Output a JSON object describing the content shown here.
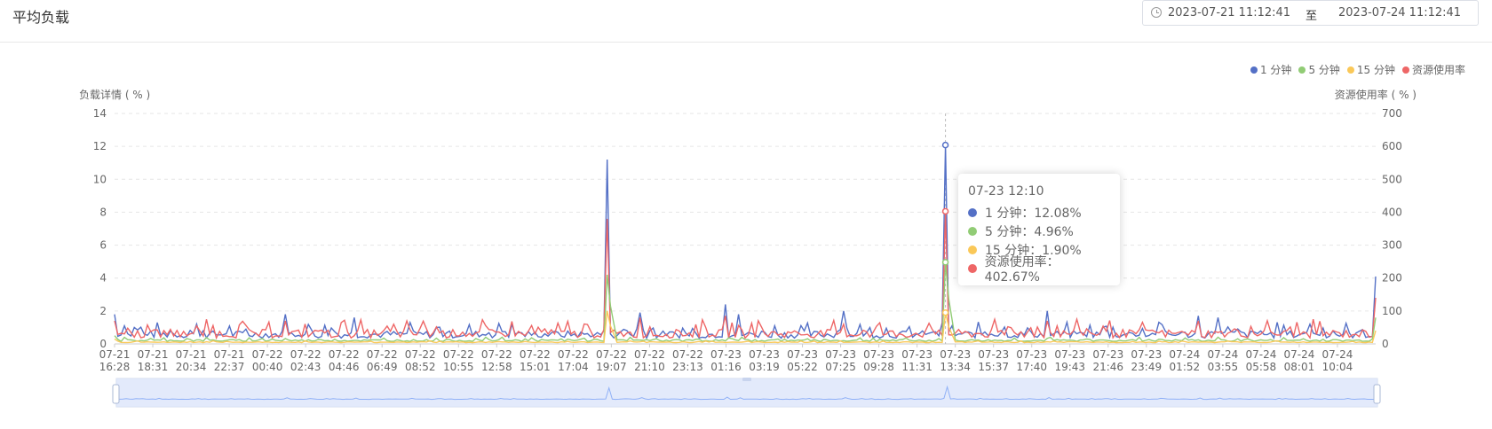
{
  "page": {
    "title": "平均负载"
  },
  "date_range": {
    "start": "2023-07-21 11:12:41",
    "separator": "至",
    "end": "2023-07-24 11:12:41"
  },
  "colors": {
    "load1": "#5470c6",
    "load5": "#91cc75",
    "load15": "#fac858",
    "usage": "#ee6666"
  },
  "legend": [
    {
      "label": "1 分钟",
      "color": "#5470c6",
      "icon": "circle-dot-icon"
    },
    {
      "label": "5 分钟",
      "color": "#91cc75",
      "icon": "circle-dot-icon"
    },
    {
      "label": "15 分钟",
      "color": "#fac858",
      "icon": "circle-dot-icon"
    },
    {
      "label": "资源使用率",
      "color": "#ee6666",
      "icon": "circle-dot-icon"
    }
  ],
  "tooltip": {
    "title": "07-23 12:10",
    "rows": [
      {
        "label": "1 分钟：12.08%",
        "color": "#5470c6"
      },
      {
        "label": "5 分钟：4.96%",
        "color": "#91cc75"
      },
      {
        "label": "15 分钟：1.90%",
        "color": "#fac858"
      },
      {
        "label": "资源使用率：402.67%",
        "color": "#ee6666"
      }
    ]
  },
  "chart_data": {
    "type": "line",
    "y_left_label": "负载详情 ( % )",
    "y_right_label": "资源使用率 ( % )",
    "y_left_ticks": [
      0,
      2,
      4,
      6,
      8,
      10,
      12,
      14
    ],
    "y_right_ticks": [
      0,
      100,
      200,
      300,
      400,
      500,
      600,
      700
    ],
    "ylim_left": [
      0,
      14
    ],
    "ylim_right": [
      0,
      700
    ],
    "grid": true,
    "legend_position": "top-right",
    "x_ticks": [
      [
        "07-21",
        "16:28"
      ],
      [
        "07-21",
        "18:31"
      ],
      [
        "07-21",
        "20:34"
      ],
      [
        "07-21",
        "22:37"
      ],
      [
        "07-22",
        "00:40"
      ],
      [
        "07-22",
        "02:43"
      ],
      [
        "07-22",
        "04:46"
      ],
      [
        "07-22",
        "06:49"
      ],
      [
        "07-22",
        "08:52"
      ],
      [
        "07-22",
        "10:55"
      ],
      [
        "07-22",
        "12:58"
      ],
      [
        "07-22",
        "15:01"
      ],
      [
        "07-22",
        "17:04"
      ],
      [
        "07-22",
        "19:07"
      ],
      [
        "07-22",
        "21:10"
      ],
      [
        "07-22",
        "23:13"
      ],
      [
        "07-23",
        "01:16"
      ],
      [
        "07-23",
        "03:19"
      ],
      [
        "07-23",
        "05:22"
      ],
      [
        "07-23",
        "07:25"
      ],
      [
        "07-23",
        "09:28"
      ],
      [
        "07-23",
        "11:31"
      ],
      [
        "07-23",
        "13:34"
      ],
      [
        "07-23",
        "15:37"
      ],
      [
        "07-23",
        "17:40"
      ],
      [
        "07-23",
        "19:43"
      ],
      [
        "07-23",
        "21:46"
      ],
      [
        "07-23",
        "23:49"
      ],
      [
        "07-24",
        "01:52"
      ],
      [
        "07-24",
        "03:55"
      ],
      [
        "07-24",
        "05:58"
      ],
      [
        "07-24",
        "08:01"
      ],
      [
        "07-24",
        "10:04"
      ]
    ],
    "series": [
      {
        "name": "1 分钟",
        "color": "#5470c6",
        "peaks": [
          [
            0,
            1.8
          ],
          [
            3,
            1.1
          ],
          [
            25,
            1.2
          ],
          [
            52,
            1.8
          ],
          [
            73,
            1.6
          ],
          [
            90,
            1.3
          ],
          [
            150,
            11.2
          ],
          [
            160,
            1.9
          ],
          [
            186,
            2.4
          ],
          [
            190,
            1.8
          ],
          [
            222,
            2.0
          ],
          [
            253,
            12.08
          ],
          [
            284,
            2.0
          ],
          [
            330,
            1.7
          ],
          [
            336,
            1.6
          ],
          [
            364,
            1.2
          ],
          [
            384,
            4.1
          ]
        ]
      },
      {
        "name": "5 分钟",
        "color": "#91cc75",
        "peaks": [
          [
            0,
            0.5
          ],
          [
            150,
            4.2
          ],
          [
            253,
            4.96
          ],
          [
            384,
            1.6
          ]
        ]
      },
      {
        "name": "15 分钟",
        "color": "#fac858",
        "peaks": [
          [
            0,
            0.3
          ],
          [
            150,
            2.0
          ],
          [
            253,
            1.9
          ],
          [
            384,
            0.8
          ]
        ]
      },
      {
        "name": "资源使用率",
        "color": "#ee6666",
        "peaks": [
          [
            0,
            70
          ],
          [
            25,
            55
          ],
          [
            52,
            70
          ],
          [
            150,
            380
          ],
          [
            160,
            80
          ],
          [
            186,
            85
          ],
          [
            222,
            60
          ],
          [
            253,
            402.67
          ],
          [
            284,
            70
          ],
          [
            330,
            70
          ],
          [
            384,
            140
          ]
        ]
      }
    ],
    "hover_index": 253,
    "point_count": 385
  },
  "zoom": {
    "handle_icon": "drag-handle-icon"
  }
}
